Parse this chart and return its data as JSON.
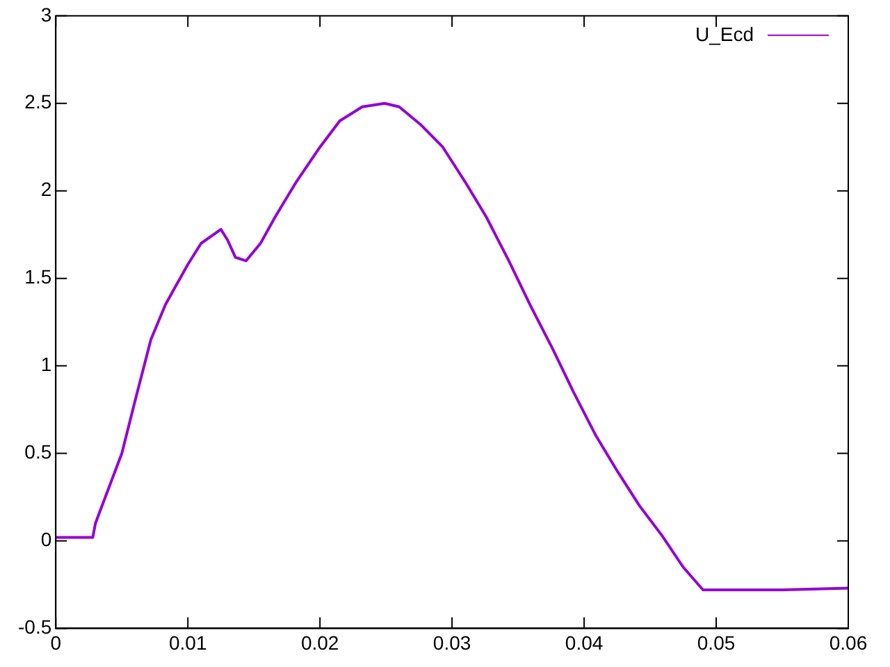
{
  "chart_data": {
    "type": "line",
    "xlim": [
      0,
      0.06
    ],
    "xticks": [
      0,
      0.01,
      0.02,
      0.03,
      0.04,
      0.05,
      0.06
    ],
    "ylim": [
      -0.5,
      3
    ],
    "yticks": [
      -0.5,
      0,
      0.5,
      1,
      1.5,
      2,
      2.5,
      3
    ],
    "grid": false,
    "legend": "top right",
    "marker": "none",
    "line_style": "solid",
    "series": [
      {
        "name": "U_Ecd",
        "color": "#9400d3",
        "x": [
          0,
          0.001,
          0.002,
          0.0028,
          0.003,
          0.0035,
          0.005,
          0.006,
          0.0072,
          0.0083,
          0.01,
          0.011,
          0.0125,
          0.013,
          0.0136,
          0.0144,
          0.0155,
          0.0166,
          0.0182,
          0.02,
          0.0215,
          0.0232,
          0.0249,
          0.026,
          0.0276,
          0.0293,
          0.031,
          0.0326,
          0.0343,
          0.0359,
          0.0376,
          0.0392,
          0.0409,
          0.0425,
          0.0442,
          0.0459,
          0.0475,
          0.049,
          0.0503,
          0.055,
          0.06
        ],
        "values": [
          0.02,
          0.02,
          0.02,
          0.02,
          0.1,
          0.2,
          0.5,
          0.8,
          1.15,
          1.35,
          1.58,
          1.7,
          1.78,
          1.72,
          1.62,
          1.6,
          1.7,
          1.85,
          2.05,
          2.25,
          2.4,
          2.48,
          2.5,
          2.48,
          2.38,
          2.25,
          2.05,
          1.85,
          1.6,
          1.35,
          1.1,
          0.85,
          0.6,
          0.4,
          0.2,
          0.03,
          -0.15,
          -0.28,
          -0.28,
          -0.28,
          -0.27
        ]
      }
    ]
  }
}
